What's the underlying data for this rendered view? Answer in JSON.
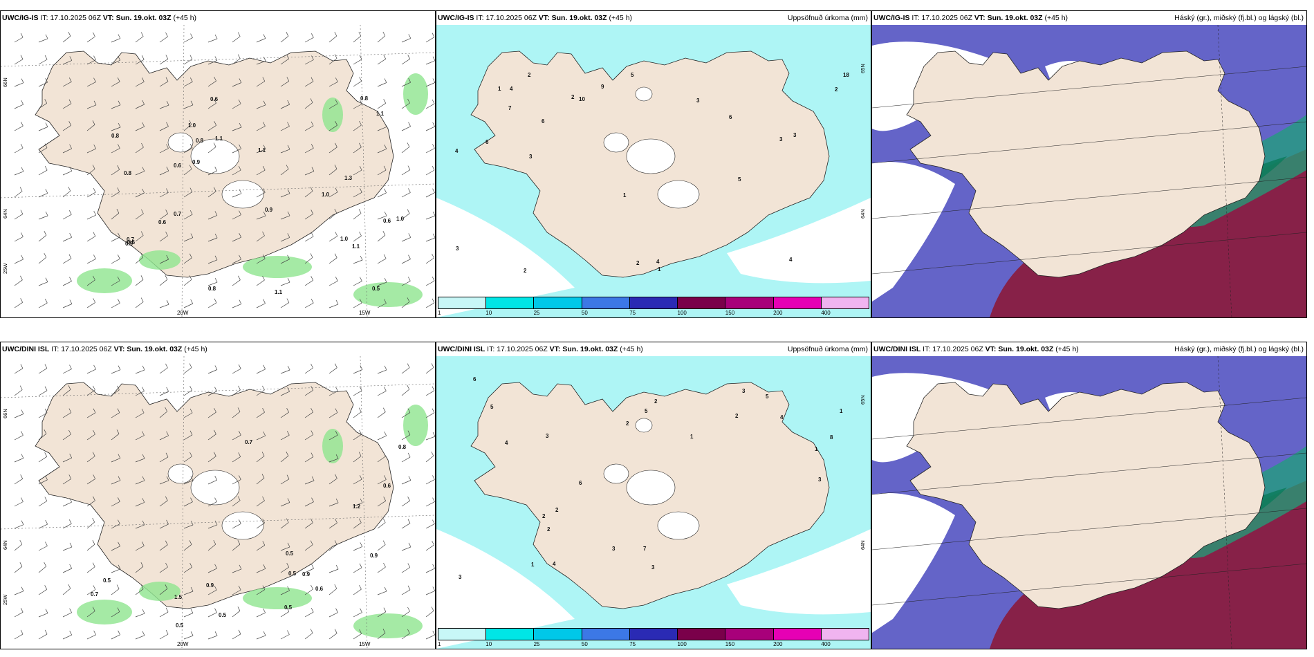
{
  "panels": [
    {
      "model": "UWC/IG-IS",
      "it_label": "IT:",
      "it_value": "17.10.2025 06Z",
      "vt_label": "VT:",
      "vt_value": "Sun. 19.okt. 03Z",
      "lead": "(+45 h)",
      "right_title": "",
      "type": "wind",
      "lat_labels": [
        "66N",
        "64N",
        "25W"
      ],
      "lon_labels": [
        "20W",
        "15W"
      ],
      "values": [
        "1.1",
        "1.1",
        "0.6",
        "0.9",
        "0.8",
        "1.1",
        "0.8",
        "1.0",
        "0.6",
        "0.5",
        "0.8",
        "1.3",
        "0.8",
        "0.6",
        "1.1",
        "0.6",
        "1.0",
        "0.6",
        "1.0",
        "0.7",
        "0.7",
        "1.0",
        "0.9",
        "0.9",
        "0.8",
        "1.1"
      ]
    },
    {
      "model": "UWC/IG-IS",
      "it_label": "IT:",
      "it_value": "17.10.2025 06Z",
      "vt_label": "VT:",
      "vt_value": "Sun. 19.okt. 03Z",
      "lead": "(+45 h)",
      "right_title": "Uppsöfnuð úrkoma (mm)",
      "type": "precip",
      "lat_labels": [
        "65N",
        "64N"
      ],
      "lon_labels": [],
      "values": [
        "1",
        "2",
        "3",
        "4",
        "5",
        "6",
        "3",
        "2",
        "1",
        "4",
        "3",
        "2",
        "5",
        "6",
        "7",
        "3",
        "2",
        "10",
        "6",
        "4",
        "3",
        "2",
        "9",
        "18",
        "4",
        "1"
      ],
      "colorbar": [
        "1",
        "10",
        "25",
        "50",
        "75",
        "100",
        "150",
        "200",
        "400"
      ]
    },
    {
      "model": "UWC/IG-IS",
      "it_label": "IT:",
      "it_value": "17.10.2025 06Z",
      "vt_label": "VT:",
      "vt_value": "Sun. 19.okt. 03Z",
      "lead": "(+45 h)",
      "right_title": "Háský (gr.), miðský (fj.bl.) og lágský (bl.)",
      "type": "cloud",
      "lat_labels": [],
      "lon_labels": [],
      "values": []
    },
    {
      "model": "UWC/DINI ISL",
      "it_label": "IT:",
      "it_value": "17.10.2025 06Z",
      "vt_label": "VT:",
      "vt_value": "Sun. 19.okt. 03Z",
      "lead": "(+45 h)",
      "right_title": "",
      "type": "wind",
      "lat_labels": [
        "66N",
        "64N",
        "25W"
      ],
      "lon_labels": [
        "20W",
        "15W"
      ],
      "values": [
        "1.2",
        "0.5",
        "0.5",
        "0.5",
        "0.5",
        "0.9",
        "0.5",
        "0.8",
        "0.7",
        "0.7",
        "0.5",
        "0.9",
        "0.6",
        "0.6",
        "1.5",
        "0.9"
      ]
    },
    {
      "model": "UWC/DINI ISL",
      "it_label": "IT:",
      "it_value": "17.10.2025 06Z",
      "vt_label": "VT:",
      "vt_value": "Sun. 19.okt. 03Z",
      "lead": "(+45 h)",
      "right_title": "Uppsöfnuð úrkoma (mm)",
      "type": "precip",
      "lat_labels": [
        "65N",
        "64N"
      ],
      "lon_labels": [],
      "values": [
        "1",
        "2",
        "3",
        "4",
        "5",
        "6",
        "7",
        "3",
        "2",
        "1",
        "4",
        "3",
        "2",
        "5",
        "6",
        "3",
        "2",
        "8",
        "4",
        "3",
        "2",
        "1",
        "5",
        "3",
        "2",
        "1"
      ],
      "colorbar": [
        "1",
        "10",
        "25",
        "50",
        "75",
        "100",
        "150",
        "200",
        "400"
      ]
    },
    {
      "model": "UWC/DINI ISL",
      "it_label": "IT:",
      "it_value": "17.10.2025 06Z",
      "vt_label": "VT:",
      "vt_value": "Sun. 19.okt. 03Z",
      "lead": "(+45 h)",
      "right_title": "Háský (gr.), miðský (fj.bl.) og lágský (bl.)",
      "type": "cloud",
      "lat_labels": [],
      "lon_labels": [],
      "values": []
    }
  ],
  "colors": {
    "land": "#f2e4d6",
    "precip_light": "#aef5f5",
    "cloud_low": "#6464c8",
    "cloud_high_red": "#8b1a3a",
    "cloud_green": "#1fa07a",
    "green_precip": "#8fe58f",
    "colorbar": [
      "#c8f7f7",
      "#00e6e6",
      "#00c8e8",
      "#3c78e6",
      "#2a2ab4",
      "#7a004a",
      "#a8007a",
      "#e600b4",
      "#f0b4f0"
    ]
  }
}
